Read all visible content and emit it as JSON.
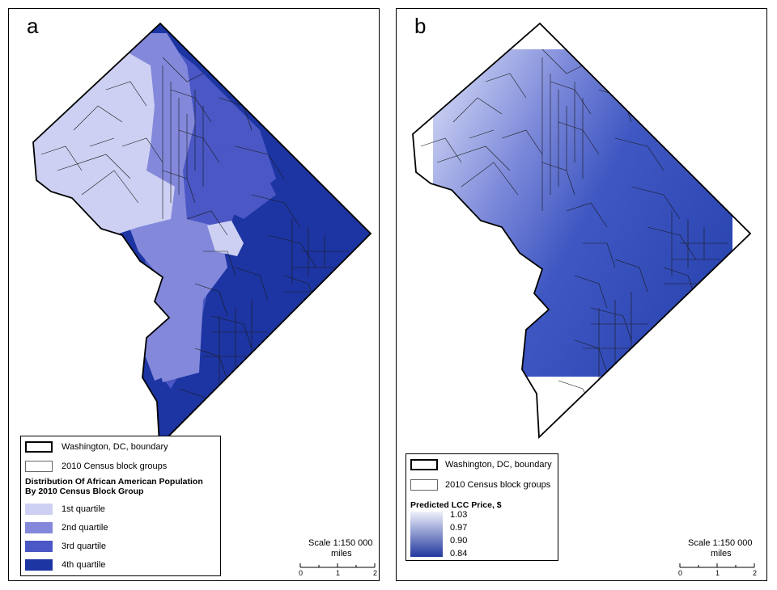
{
  "panels": {
    "a": {
      "letter": "a",
      "legend": {
        "boundary_label": "Washington, DC, boundary",
        "blockgroups_label": "2010 Census block groups",
        "title_line1": "Distribution Of African American Population",
        "title_line2": "By 2010 Census Block Group",
        "classes": [
          {
            "label": "1st quartile",
            "color": "#cdd0f2"
          },
          {
            "label": "2nd quartile",
            "color": "#8388db"
          },
          {
            "label": "3rd quartile",
            "color": "#4a57c4"
          },
          {
            "label": "4th quartile",
            "color": "#1d35a2"
          }
        ]
      },
      "scale": {
        "scale_label": "Scale 1:150 000",
        "unit_label": "miles",
        "ticks": [
          "0",
          "1",
          "2"
        ]
      }
    },
    "b": {
      "letter": "b",
      "legend": {
        "boundary_label": "Washington, DC, boundary",
        "blockgroups_label": "2010 Census block groups",
        "ramp_title": "Predicted LCC Price, $",
        "ramp_values": [
          "1.03",
          "0.97",
          "0.90",
          "0.84"
        ],
        "ramp_colors": {
          "high": "#eef0fb",
          "low": "#23389f"
        }
      },
      "scale": {
        "scale_label": "Scale 1:150 000",
        "unit_label": "miles",
        "ticks": [
          "0",
          "1",
          "2"
        ]
      }
    }
  },
  "colors": {
    "boundary": "#000000",
    "quartile_1": "#cdd0f2",
    "quartile_2": "#8388db",
    "quartile_3": "#4a57c4",
    "quartile_4": "#1d35a2",
    "price_high": "#dfe3f8",
    "price_mid": "#6f7fd6",
    "price_low": "#2c46b2"
  }
}
